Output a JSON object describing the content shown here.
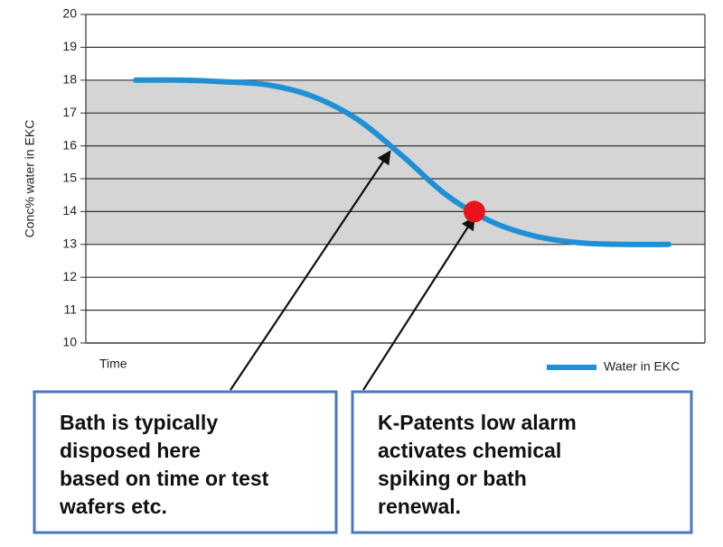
{
  "chart_data": {
    "type": "line",
    "y_label": "Conc% water in EKC",
    "x_label": "Time",
    "categories": [
      null,
      null,
      null,
      null,
      null,
      null,
      null,
      null,
      null,
      null,
      null,
      null,
      null
    ],
    "series": [
      {
        "name": "Water in EKC",
        "color": "#1f8fd6",
        "values": [
          18,
          18,
          17.95,
          17.85,
          17.5,
          16.8,
          15.7,
          14.5,
          13.7,
          13.25,
          13.05,
          13,
          13
        ]
      }
    ],
    "ylim": [
      10,
      20
    ],
    "yticks": [
      10,
      11,
      12,
      13,
      14,
      15,
      16,
      17,
      18,
      19,
      20
    ],
    "grid": true,
    "shaded_range": [
      13,
      18
    ],
    "legend": "bottom-right",
    "alarm_point": {
      "value": 14,
      "color": "#e8141c"
    },
    "annotations": [
      {
        "target": 16,
        "lines": [
          "Bath is typically",
          "disposed here",
          "based on time or test",
          "wafers etc."
        ]
      },
      {
        "target": 14,
        "lines": [
          "K-Patents low alarm",
          "activates chemical",
          "spiking or bath",
          "renewal."
        ]
      }
    ]
  }
}
